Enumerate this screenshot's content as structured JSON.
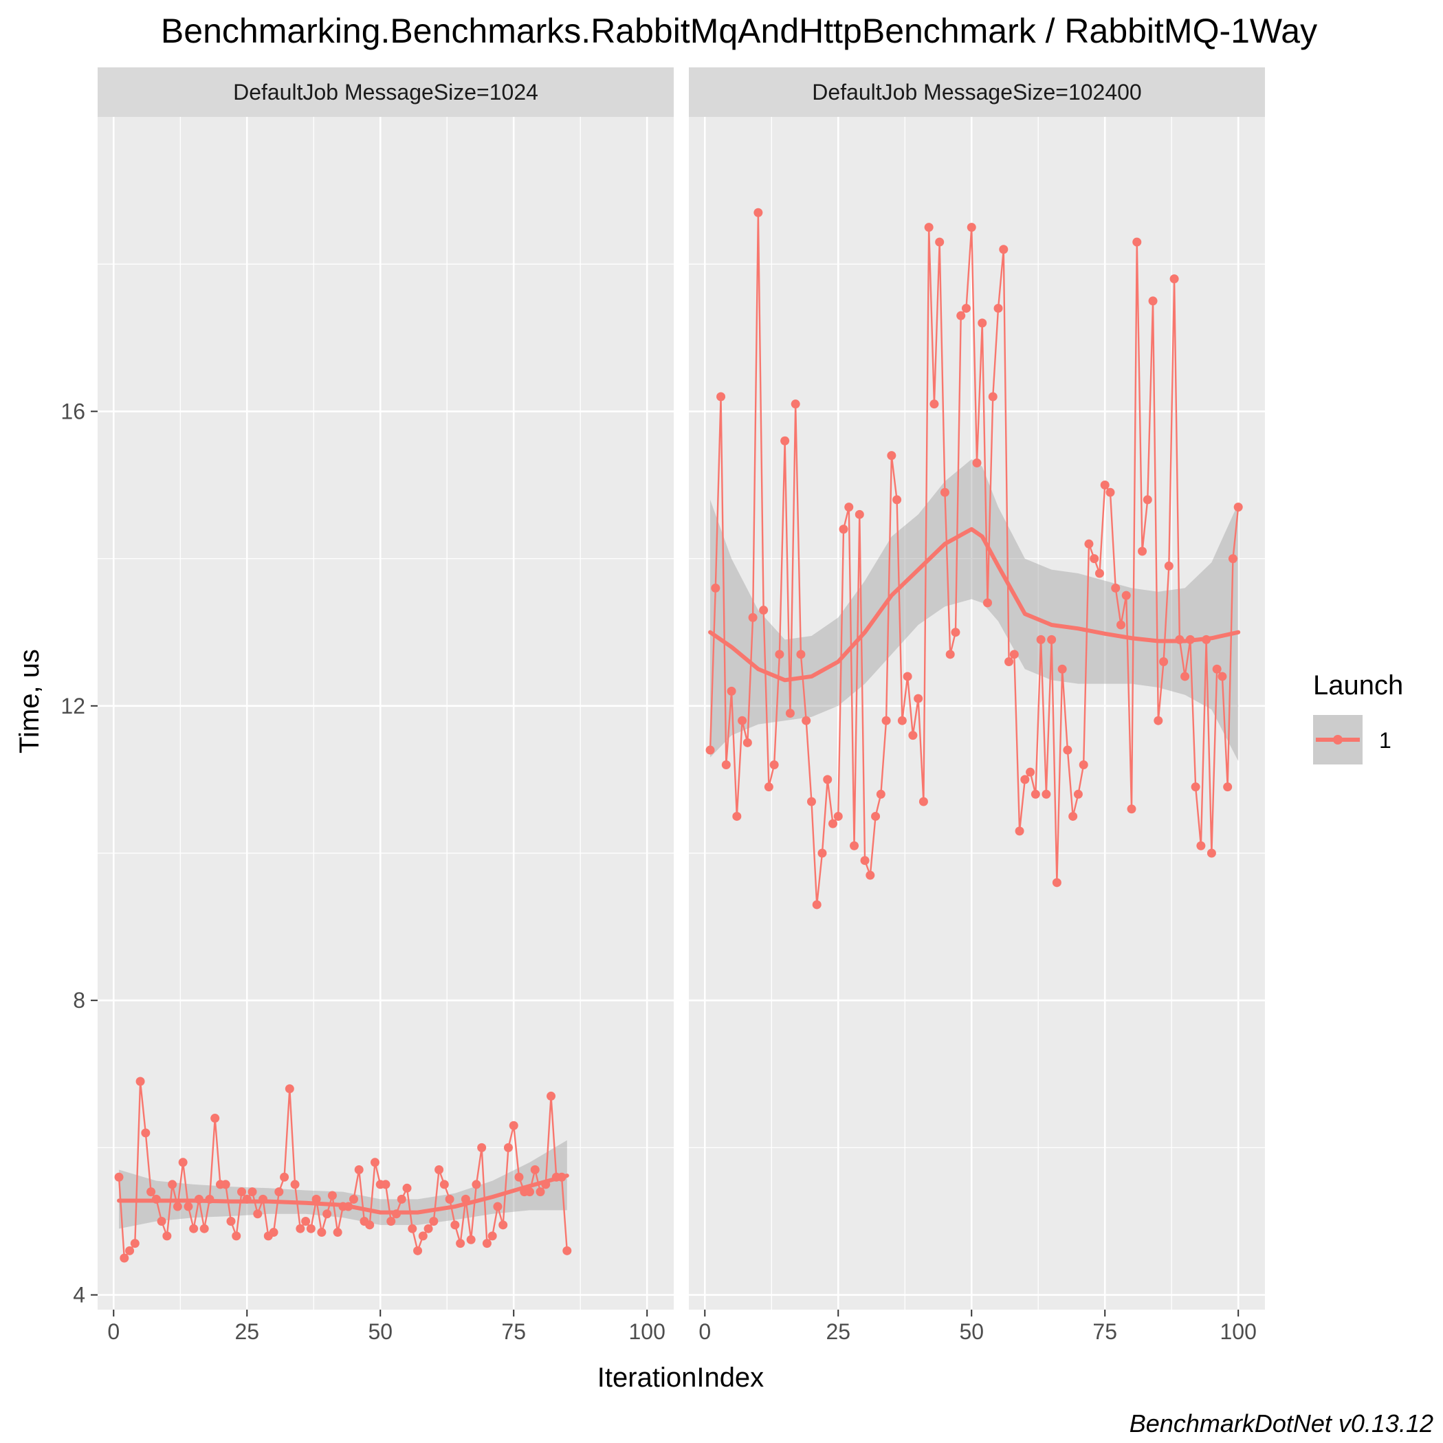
{
  "chart_data": {
    "type": "line",
    "title": "Benchmarking.Benchmarks.RabbitMqAndHttpBenchmark / RabbitMQ-1Way",
    "xlabel": "IterationIndex",
    "ylabel": "Time, us",
    "xlim": [
      -3,
      105
    ],
    "ylim": [
      3.8,
      20.0
    ],
    "x_ticks": [
      0,
      25,
      50,
      75,
      100
    ],
    "y_ticks": [
      4,
      8,
      12,
      16
    ],
    "grid": true,
    "legend": {
      "title": "Launch",
      "position": "right",
      "entries": [
        "1"
      ],
      "color": "#F8766D"
    },
    "caption": "BenchmarkDotNet v0.13.12",
    "panels": [
      {
        "label": "DefaultJob MessageSize=1024",
        "series": [
          {
            "name": "1",
            "values": [
              5.6,
              4.5,
              4.6,
              4.7,
              6.9,
              6.2,
              5.4,
              5.3,
              5.0,
              4.8,
              5.5,
              5.2,
              5.8,
              5.2,
              4.9,
              5.3,
              4.9,
              5.3,
              6.4,
              5.5,
              5.5,
              5.0,
              4.8,
              5.4,
              5.3,
              5.4,
              5.1,
              5.3,
              4.8,
              4.85,
              5.4,
              5.6,
              6.8,
              5.5,
              4.9,
              5.0,
              4.9,
              5.3,
              4.85,
              5.1,
              5.35,
              4.85,
              5.2,
              5.2,
              5.3,
              5.7,
              5.0,
              4.95,
              5.8,
              5.5,
              5.5,
              5.0,
              5.1,
              5.3,
              5.45,
              4.9,
              4.6,
              4.8,
              4.9,
              5.0,
              5.7,
              5.5,
              5.3,
              4.95,
              4.7,
              5.3,
              4.75,
              5.5,
              6.0,
              4.7,
              4.8,
              5.2,
              4.95,
              6.0,
              6.3,
              5.6,
              5.4,
              5.4,
              5.7,
              5.4,
              5.5,
              6.7,
              5.6,
              5.6,
              4.6
            ]
          }
        ],
        "smooth": {
          "x": [
            1,
            8,
            15,
            22,
            29,
            36,
            43,
            50,
            57,
            64,
            71,
            78,
            85
          ],
          "y": [
            5.28,
            5.28,
            5.28,
            5.27,
            5.27,
            5.25,
            5.22,
            5.12,
            5.12,
            5.2,
            5.33,
            5.48,
            5.62
          ],
          "lower": [
            4.9,
            5.0,
            5.05,
            5.07,
            5.1,
            5.1,
            5.05,
            4.95,
            4.95,
            5.02,
            5.1,
            5.15,
            5.15
          ],
          "upper": [
            5.7,
            5.55,
            5.5,
            5.47,
            5.45,
            5.42,
            5.4,
            5.3,
            5.3,
            5.38,
            5.55,
            5.8,
            6.1
          ]
        }
      },
      {
        "label": "DefaultJob MessageSize=102400",
        "series": [
          {
            "name": "1",
            "values": [
              11.4,
              13.6,
              16.2,
              11.2,
              12.2,
              10.5,
              11.8,
              11.5,
              13.2,
              18.7,
              13.3,
              10.9,
              11.2,
              12.7,
              15.6,
              11.9,
              16.1,
              12.7,
              11.8,
              10.7,
              9.3,
              10.0,
              11.0,
              10.4,
              10.5,
              14.4,
              14.7,
              10.1,
              14.6,
              9.9,
              9.7,
              10.5,
              10.8,
              11.8,
              15.4,
              14.8,
              11.8,
              12.4,
              11.6,
              12.1,
              10.7,
              18.5,
              16.1,
              18.3,
              14.9,
              12.7,
              13.0,
              17.3,
              17.4,
              18.5,
              15.3,
              17.2,
              13.4,
              16.2,
              17.4,
              18.2,
              12.6,
              12.7,
              10.3,
              11.0,
              11.1,
              10.8,
              12.9,
              10.8,
              12.9,
              9.6,
              12.5,
              11.4,
              10.5,
              10.8,
              11.2,
              14.2,
              14.0,
              13.8,
              15.0,
              14.9,
              13.6,
              13.1,
              13.5,
              10.6,
              18.3,
              14.1,
              14.8,
              17.5,
              11.8,
              12.6,
              13.9,
              17.8,
              12.9,
              12.4,
              12.9,
              10.9,
              10.1,
              12.9,
              10.0,
              12.5,
              12.4,
              10.9,
              14.0,
              14.7
            ]
          }
        ],
        "smooth": {
          "x": [
            1,
            5,
            10,
            15,
            20,
            25,
            30,
            35,
            40,
            45,
            50,
            52,
            55,
            60,
            65,
            70,
            75,
            80,
            85,
            90,
            95,
            100
          ],
          "y": [
            13.0,
            12.8,
            12.5,
            12.35,
            12.4,
            12.6,
            13.0,
            13.5,
            13.85,
            14.2,
            14.4,
            14.3,
            13.9,
            13.25,
            13.1,
            13.05,
            12.98,
            12.92,
            12.88,
            12.88,
            12.92,
            13.0
          ],
          "lower": [
            11.3,
            11.6,
            11.75,
            11.8,
            11.85,
            12.0,
            12.3,
            12.7,
            13.1,
            13.35,
            13.45,
            13.4,
            13.15,
            12.5,
            12.35,
            12.3,
            12.3,
            12.3,
            12.25,
            12.15,
            11.95,
            11.25
          ],
          "upper": [
            14.8,
            14.0,
            13.3,
            12.9,
            12.95,
            13.2,
            13.7,
            14.3,
            14.6,
            15.05,
            15.35,
            15.25,
            14.7,
            14.0,
            13.85,
            13.8,
            13.7,
            13.6,
            13.55,
            13.6,
            13.95,
            14.75
          ]
        }
      }
    ]
  }
}
